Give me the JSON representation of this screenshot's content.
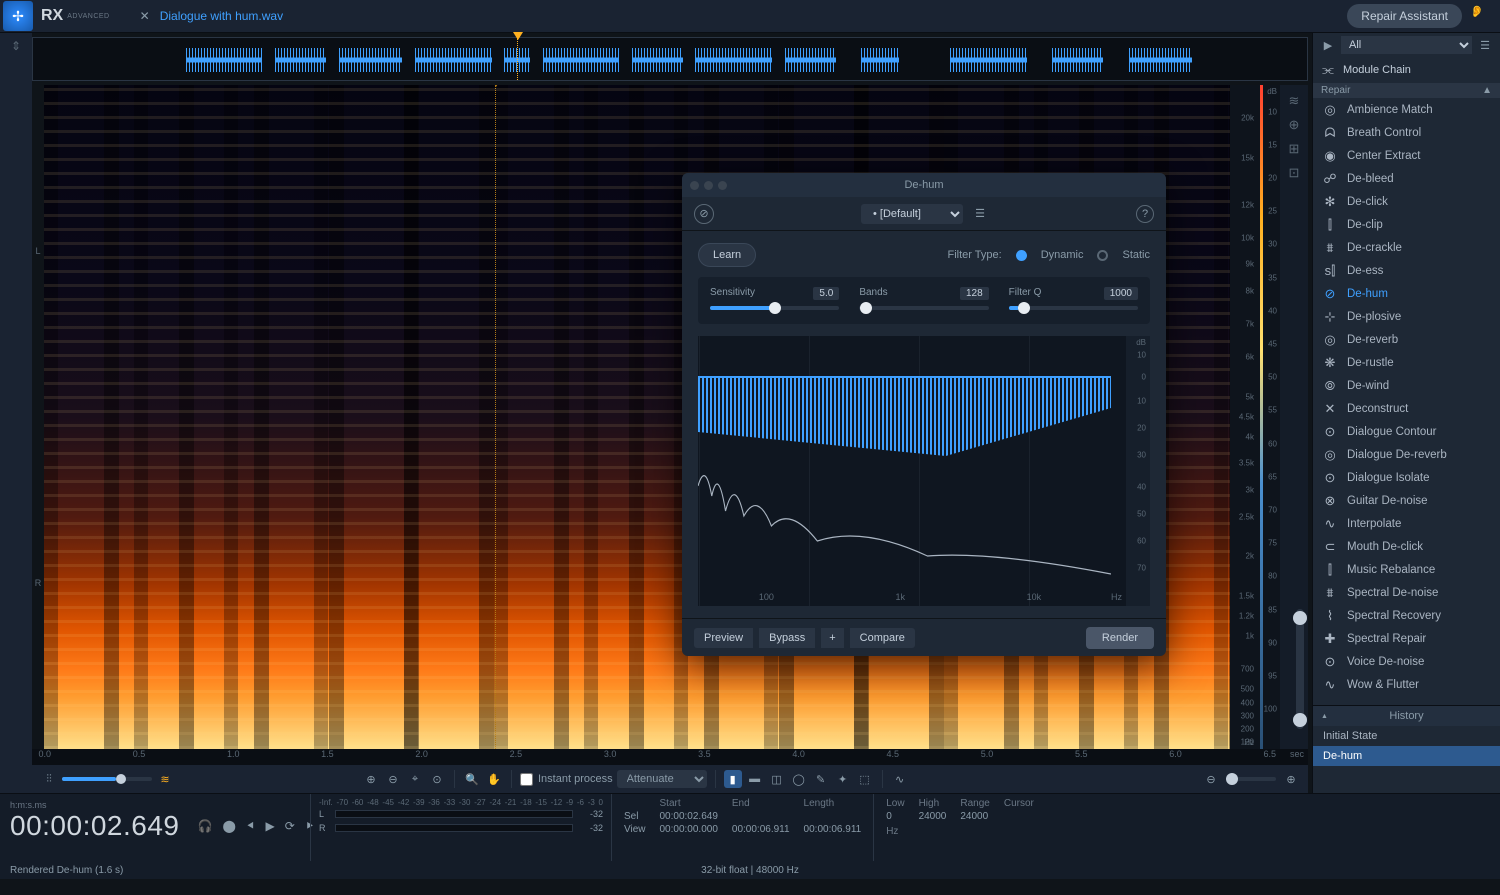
{
  "app": {
    "name": "RX",
    "edition": "ADVANCED"
  },
  "tab": {
    "filename": "Dialogue with hum.wav"
  },
  "topbar": {
    "repair_assistant_label": "Repair Assistant"
  },
  "overview": {
    "segments_pct": [
      {
        "l": 12,
        "w": 6
      },
      {
        "l": 19,
        "w": 4
      },
      {
        "l": 24,
        "w": 5
      },
      {
        "l": 30,
        "w": 6
      },
      {
        "l": 37,
        "w": 2
      },
      {
        "l": 40,
        "w": 6
      },
      {
        "l": 47,
        "w": 4
      },
      {
        "l": 52,
        "w": 6
      },
      {
        "l": 59,
        "w": 4
      },
      {
        "l": 65,
        "w": 3
      },
      {
        "l": 72,
        "w": 6
      },
      {
        "l": 80,
        "w": 4
      },
      {
        "l": 86,
        "w": 5
      }
    ],
    "playhead_pct": 38
  },
  "time_ruler": {
    "ticks": [
      "0.0",
      "0.5",
      "1.0",
      "1.5",
      "2.0",
      "2.5",
      "3.0",
      "3.5",
      "4.0",
      "4.5",
      "5.0",
      "5.5",
      "6.0",
      "6.5"
    ],
    "unit": "sec"
  },
  "freq_ruler": {
    "ticks": [
      {
        "l": "20k",
        "p": 5
      },
      {
        "l": "15k",
        "p": 11
      },
      {
        "l": "12k",
        "p": 18
      },
      {
        "l": "10k",
        "p": 23
      },
      {
        "l": "9k",
        "p": 27
      },
      {
        "l": "8k",
        "p": 31
      },
      {
        "l": "7k",
        "p": 36
      },
      {
        "l": "6k",
        "p": 41
      },
      {
        "l": "5k",
        "p": 47
      },
      {
        "l": "4.5k",
        "p": 50
      },
      {
        "l": "4k",
        "p": 53
      },
      {
        "l": "3.5k",
        "p": 57
      },
      {
        "l": "3k",
        "p": 61
      },
      {
        "l": "2.5k",
        "p": 65
      },
      {
        "l": "2k",
        "p": 71
      },
      {
        "l": "1.5k",
        "p": 77
      },
      {
        "l": "1.2k",
        "p": 80
      },
      {
        "l": "1k",
        "p": 83
      },
      {
        "l": "700",
        "p": 88
      },
      {
        "l": "500",
        "p": 91
      },
      {
        "l": "400",
        "p": 93
      },
      {
        "l": "300",
        "p": 95
      },
      {
        "l": "200",
        "p": 97
      },
      {
        "l": "120",
        "p": 99
      }
    ],
    "unit": "Hz"
  },
  "db_ruler": {
    "header": "dB",
    "ticks": [
      {
        "l": "10",
        "p": 4
      },
      {
        "l": "15",
        "p": 9
      },
      {
        "l": "20",
        "p": 14
      },
      {
        "l": "25",
        "p": 19
      },
      {
        "l": "30",
        "p": 24
      },
      {
        "l": "35",
        "p": 29
      },
      {
        "l": "40",
        "p": 34
      },
      {
        "l": "45",
        "p": 39
      },
      {
        "l": "50",
        "p": 44
      },
      {
        "l": "55",
        "p": 49
      },
      {
        "l": "60",
        "p": 54
      },
      {
        "l": "65",
        "p": 59
      },
      {
        "l": "70",
        "p": 64
      },
      {
        "l": "75",
        "p": 69
      },
      {
        "l": "80",
        "p": 74
      },
      {
        "l": "85",
        "p": 79
      },
      {
        "l": "90",
        "p": 84
      },
      {
        "l": "95",
        "p": 89
      },
      {
        "l": "100",
        "p": 94
      }
    ]
  },
  "mid_toolbar": {
    "instant_process_label": "Instant process",
    "instant_mode": "Attenuate",
    "tools": [
      "time-sel",
      "freq-sel",
      "tf-sel",
      "lasso",
      "brush",
      "wand",
      "region",
      "find",
      "draw"
    ]
  },
  "module_panel": {
    "filter_label": "All",
    "chain_label": "Module Chain",
    "section": "Repair",
    "active": "De-hum",
    "modules": [
      "Ambience Match",
      "Breath Control",
      "Center Extract",
      "De-bleed",
      "De-click",
      "De-clip",
      "De-crackle",
      "De-ess",
      "De-hum",
      "De-plosive",
      "De-reverb",
      "De-rustle",
      "De-wind",
      "Deconstruct",
      "Dialogue Contour",
      "Dialogue De-reverb",
      "Dialogue Isolate",
      "Guitar De-noise",
      "Interpolate",
      "Mouth De-click",
      "Music Rebalance",
      "Spectral De-noise",
      "Spectral Recovery",
      "Spectral Repair",
      "Voice De-noise",
      "Wow & Flutter"
    ],
    "module_icons": [
      "◎",
      "ᗣ",
      "◉",
      "☍",
      "✻",
      "⫿",
      "⩩",
      "s⫿",
      "⊘",
      "⊹",
      "◎",
      "❋",
      "⦾",
      "✕",
      "⊙",
      "◎",
      "⊙",
      "⊗",
      "∿",
      "⊂",
      "⫿",
      "⩩",
      "⌇",
      "✚",
      "⊙",
      "∿"
    ]
  },
  "history": {
    "title": "History",
    "items": [
      "Initial State",
      "De-hum"
    ],
    "selected": 1
  },
  "dialog": {
    "title": "De-hum",
    "preset_label": "• [Default]",
    "learn_label": "Learn",
    "filter_type_label": "Filter Type:",
    "filter_dynamic": "Dynamic",
    "filter_static": "Static",
    "sliders": {
      "sensitivity": {
        "label": "Sensitivity",
        "value": "5.0",
        "fill_pct": 50,
        "thumb_pct": 50
      },
      "bands": {
        "label": "Bands",
        "value": "128",
        "fill_pct": 0,
        "thumb_pct": 5
      },
      "filterq": {
        "label": "Filter Q",
        "value": "1000",
        "fill_pct": 8,
        "thumb_pct": 12
      }
    },
    "graph": {
      "y_header": "dB",
      "y_ticks": [
        {
          "l": "10",
          "p": 7
        },
        {
          "l": "0",
          "p": 15
        },
        {
          "l": "10",
          "p": 24
        },
        {
          "l": "20",
          "p": 34
        },
        {
          "l": "30",
          "p": 44
        },
        {
          "l": "40",
          "p": 56
        },
        {
          "l": "50",
          "p": 66
        },
        {
          "l": "60",
          "p": 76
        },
        {
          "l": "70",
          "p": 86
        }
      ],
      "x_ticks": [
        "100",
        "1k",
        "10k"
      ],
      "x_unit": "Hz"
    },
    "footer": {
      "preview": "Preview",
      "bypass": "Bypass",
      "plus": "+",
      "compare": "Compare",
      "render": "Render"
    }
  },
  "transport": {
    "format_label": "h:m:s.ms",
    "time": "00:00:02.649",
    "meter": {
      "scale": [
        "-Inf.",
        "-70",
        "-60",
        "-48",
        "-45",
        "-42",
        "-39",
        "-36",
        "-33",
        "-30",
        "-27",
        "-24",
        "-21",
        "-18",
        "-15",
        "-12",
        "-9",
        "-6",
        "-3",
        "0"
      ],
      "ch": [
        "L",
        "R"
      ],
      "peak": [
        "-32",
        "-32"
      ]
    },
    "sel_view": {
      "headers": [
        "",
        "Start",
        "End",
        "Length"
      ],
      "rows": [
        [
          "Sel",
          "00:00:02.649",
          "",
          ""
        ],
        [
          "View",
          "00:00:00.000",
          "00:00:06.911",
          "00:00:06.911"
        ]
      ]
    },
    "freq": {
      "headers": [
        "Low",
        "High",
        "Range",
        "Cursor"
      ],
      "row": [
        "0",
        "24000",
        "24000",
        ""
      ],
      "unit": "Hz"
    }
  },
  "status": {
    "left": "Rendered De-hum (1.6 s)",
    "center": "32-bit float | 48000 Hz"
  },
  "colors": {
    "accent": "#3fa0ff",
    "panel": "#1e2835",
    "bg": "#0f1419",
    "warn": "#ffb020"
  }
}
